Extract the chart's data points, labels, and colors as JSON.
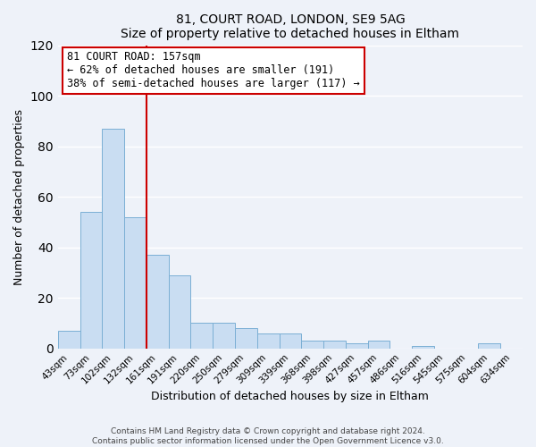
{
  "title1": "81, COURT ROAD, LONDON, SE9 5AG",
  "title2": "Size of property relative to detached houses in Eltham",
  "xlabel": "Distribution of detached houses by size in Eltham",
  "ylabel": "Number of detached properties",
  "categories": [
    "43sqm",
    "73sqm",
    "102sqm",
    "132sqm",
    "161sqm",
    "191sqm",
    "220sqm",
    "250sqm",
    "279sqm",
    "309sqm",
    "339sqm",
    "368sqm",
    "398sqm",
    "427sqm",
    "457sqm",
    "486sqm",
    "516sqm",
    "545sqm",
    "575sqm",
    "604sqm",
    "634sqm"
  ],
  "values": [
    7,
    54,
    87,
    52,
    37,
    29,
    10,
    10,
    8,
    6,
    6,
    3,
    3,
    2,
    3,
    0,
    1,
    0,
    0,
    2,
    0
  ],
  "bar_color": "#c9ddf2",
  "bar_edge_color": "#7bafd4",
  "ylim": [
    0,
    120
  ],
  "yticks": [
    0,
    20,
    40,
    60,
    80,
    100,
    120
  ],
  "vline_color": "#cc0000",
  "annotation_title": "81 COURT ROAD: 157sqm",
  "annotation_line1": "← 62% of detached houses are smaller (191)",
  "annotation_line2": "38% of semi-detached houses are larger (117) →",
  "annotation_box_edge_color": "#cc0000",
  "footer1": "Contains HM Land Registry data © Crown copyright and database right 2024.",
  "footer2": "Contains public sector information licensed under the Open Government Licence v3.0.",
  "background_color": "#eef2f9",
  "grid_color": "#ffffff"
}
